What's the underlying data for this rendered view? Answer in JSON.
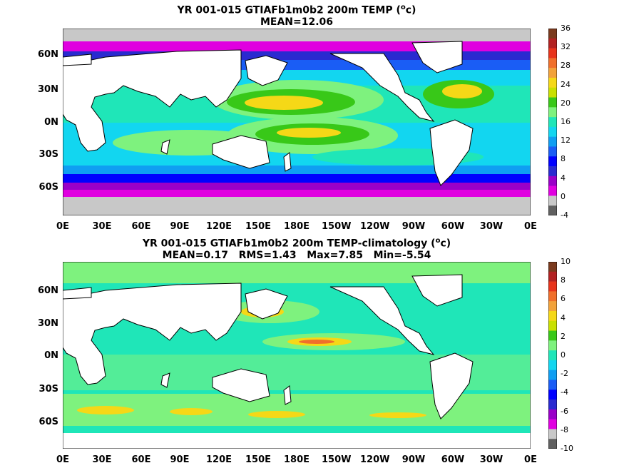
{
  "panels": [
    {
      "title_line1": "YR 001-015 GTIAFb1m0b2 200m TEMP (",
      "title_sup": "o",
      "title_unit": "c)",
      "title_line2": "MEAN=12.06",
      "colorbar_ticks": [
        "36",
        "32",
        "28",
        "24",
        "20",
        "16",
        "12",
        "8",
        "4",
        "0",
        "-4"
      ],
      "colorbar_colors": [
        "#7a3a1e",
        "#b22222",
        "#e8341c",
        "#f06f2b",
        "#f2a23a",
        "#f5d817",
        "#c9e000",
        "#38c818",
        "#7ef27e",
        "#1fe6b8",
        "#12d6f0",
        "#0f9ef2",
        "#1a5df5",
        "#0000ff",
        "#2a2ad0",
        "#9a00c8",
        "#e000e0",
        "#c8c8c8",
        "#606060"
      ],
      "lat_labels": [
        "60N",
        "30N",
        "0N",
        "30S",
        "60S"
      ],
      "lon_labels": [
        "0E",
        "30E",
        "60E",
        "90E",
        "120E",
        "150E",
        "180E",
        "150W",
        "120W",
        "90W",
        "60W",
        "30W",
        "0E"
      ]
    },
    {
      "title_line1": "YR 001-015 GTIAFb1m0b2 200m TEMP-climatology (",
      "title_sup": "o",
      "title_unit": "c)",
      "title_line2": "MEAN=0.17   RMS=1.43   Max=7.85   Min=-5.54",
      "colorbar_ticks": [
        "10",
        "8",
        "6",
        "4",
        "2",
        "0",
        "-2",
        "-4",
        "-6",
        "-8",
        "-10"
      ],
      "colorbar_colors": [
        "#7a3a1e",
        "#b22222",
        "#e8341c",
        "#f06f2b",
        "#f2a23a",
        "#f5d817",
        "#c9e000",
        "#38c818",
        "#7ef27e",
        "#1fe6b8",
        "#12d6f0",
        "#0f9ef2",
        "#1a5df5",
        "#0000ff",
        "#2a2ad0",
        "#9a00c8",
        "#e000e0",
        "#c8c8c8",
        "#606060"
      ],
      "lat_labels": [
        "60N",
        "30N",
        "0N",
        "30S",
        "60S"
      ],
      "lon_labels": [
        "0E",
        "30E",
        "60E",
        "90E",
        "120E",
        "150E",
        "180E",
        "150W",
        "120W",
        "90W",
        "60W",
        "30W",
        "0E"
      ]
    }
  ]
}
